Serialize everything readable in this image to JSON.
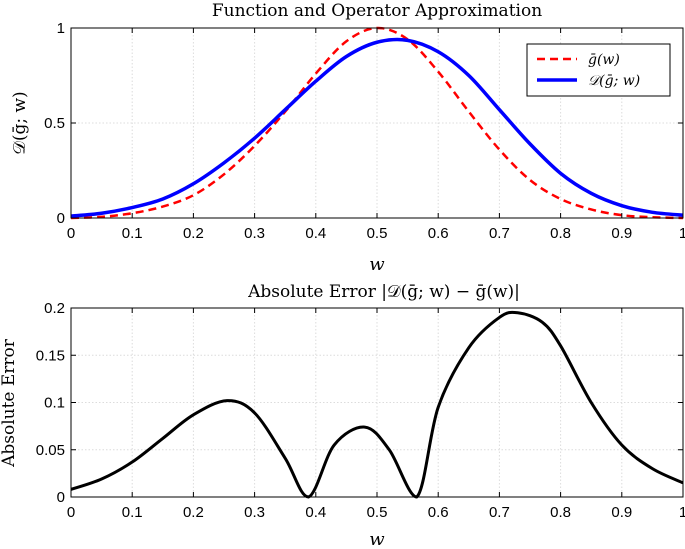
{
  "chart_data": [
    {
      "type": "line",
      "title": "Function and Operator Approximation",
      "xlabel": "w",
      "ylabel": "𝒟(ḡ; w)",
      "xlim": [
        0,
        1
      ],
      "ylim": [
        0,
        1
      ],
      "xticks": [
        "0",
        "0.1",
        "0.2",
        "0.3",
        "0.4",
        "0.5",
        "0.6",
        "0.7",
        "0.8",
        "0.9",
        "1"
      ],
      "yticks": [
        "0",
        "0.5",
        "1"
      ],
      "grid": true,
      "legend_position": "top-right",
      "x": [
        0,
        0.05,
        0.1,
        0.15,
        0.2,
        0.25,
        0.3,
        0.35,
        0.4,
        0.45,
        0.5,
        0.55,
        0.6,
        0.65,
        0.7,
        0.75,
        0.8,
        0.85,
        0.9,
        0.95,
        1
      ],
      "series": [
        {
          "name": "ḡ(w)",
          "color": "#ff0000",
          "style": "dashed",
          "values": [
            0.0,
            0.006,
            0.025,
            0.06,
            0.12,
            0.23,
            0.38,
            0.56,
            0.76,
            0.93,
            1.0,
            0.94,
            0.77,
            0.56,
            0.36,
            0.2,
            0.1,
            0.045,
            0.015,
            0.004,
            0.0
          ]
        },
        {
          "name": "𝒟(ḡ; w)",
          "color": "#0000ff",
          "style": "solid",
          "values": [
            0.01,
            0.025,
            0.055,
            0.1,
            0.18,
            0.29,
            0.42,
            0.57,
            0.72,
            0.85,
            0.925,
            0.935,
            0.875,
            0.75,
            0.57,
            0.39,
            0.235,
            0.13,
            0.065,
            0.03,
            0.015
          ]
        }
      ]
    },
    {
      "type": "line",
      "title": "Absolute Error |𝒟(ḡ; w) − ḡ(w)|",
      "xlabel": "w",
      "ylabel": "Absolute Error",
      "xlim": [
        0,
        1
      ],
      "ylim": [
        0,
        0.2
      ],
      "xticks": [
        "0",
        "0.1",
        "0.2",
        "0.3",
        "0.4",
        "0.5",
        "0.6",
        "0.7",
        "0.8",
        "0.9",
        "1"
      ],
      "yticks": [
        "0",
        "0.05",
        "0.1",
        "0.15",
        "0.2"
      ],
      "grid": true,
      "x": [
        0,
        0.05,
        0.1,
        0.15,
        0.2,
        0.255,
        0.3,
        0.35,
        0.388,
        0.43,
        0.48,
        0.52,
        0.565,
        0.6,
        0.65,
        0.7,
        0.73,
        0.77,
        0.8,
        0.85,
        0.9,
        0.95,
        1
      ],
      "series": [
        {
          "name": "",
          "color": "#000000",
          "style": "solid",
          "values": [
            0.008,
            0.019,
            0.037,
            0.062,
            0.087,
            0.102,
            0.089,
            0.041,
            0.0,
            0.055,
            0.074,
            0.05,
            0.0,
            0.095,
            0.158,
            0.19,
            0.195,
            0.185,
            0.16,
            0.1,
            0.055,
            0.03,
            0.015
          ]
        }
      ]
    }
  ]
}
